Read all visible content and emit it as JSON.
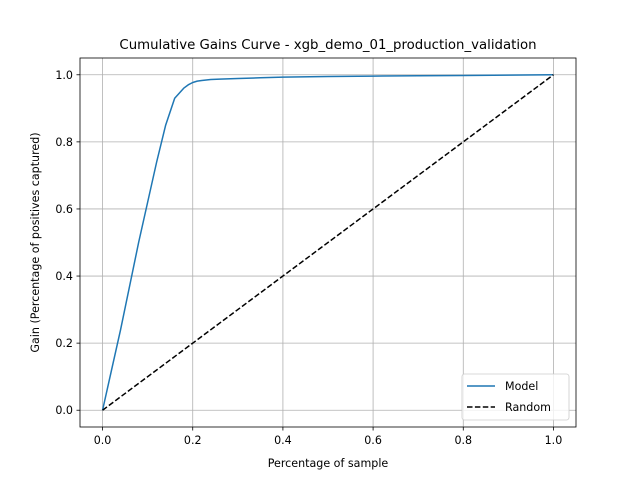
{
  "chart_data": {
    "type": "line",
    "title": "Cumulative Gains Curve - xgb_demo_01_production_validation",
    "xlabel": "Percentage of sample",
    "ylabel": "Gain (Percentage of positives captured)",
    "xlim": [
      -0.05,
      1.05
    ],
    "ylim": [
      -0.05,
      1.05
    ],
    "x_ticks": [
      0.0,
      0.2,
      0.4,
      0.6,
      0.8,
      1.0
    ],
    "x_tick_labels": [
      "0.0",
      "0.2",
      "0.4",
      "0.6",
      "0.8",
      "1.0"
    ],
    "y_ticks": [
      0.0,
      0.2,
      0.4,
      0.6,
      0.8,
      1.0
    ],
    "y_tick_labels": [
      "0.0",
      "0.2",
      "0.4",
      "0.6",
      "0.8",
      "1.0"
    ],
    "grid": true,
    "legend_position": "lower-right",
    "series": [
      {
        "name": "Model",
        "color": "#1f77b4",
        "style": "solid",
        "x": [
          0.0,
          0.02,
          0.04,
          0.06,
          0.08,
          0.1,
          0.12,
          0.14,
          0.16,
          0.17,
          0.18,
          0.19,
          0.2,
          0.21,
          0.22,
          0.24,
          0.26,
          0.3,
          0.35,
          0.4,
          0.5,
          0.6,
          0.7,
          0.8,
          0.9,
          1.0
        ],
        "y": [
          0.0,
          0.12,
          0.24,
          0.37,
          0.5,
          0.62,
          0.74,
          0.85,
          0.93,
          0.945,
          0.96,
          0.97,
          0.977,
          0.981,
          0.983,
          0.986,
          0.987,
          0.989,
          0.991,
          0.993,
          0.995,
          0.996,
          0.997,
          0.998,
          0.999,
          1.0
        ]
      },
      {
        "name": "Random",
        "color": "#000000",
        "style": "dashed",
        "x": [
          0.0,
          1.0
        ],
        "y": [
          0.0,
          1.0
        ]
      }
    ]
  }
}
